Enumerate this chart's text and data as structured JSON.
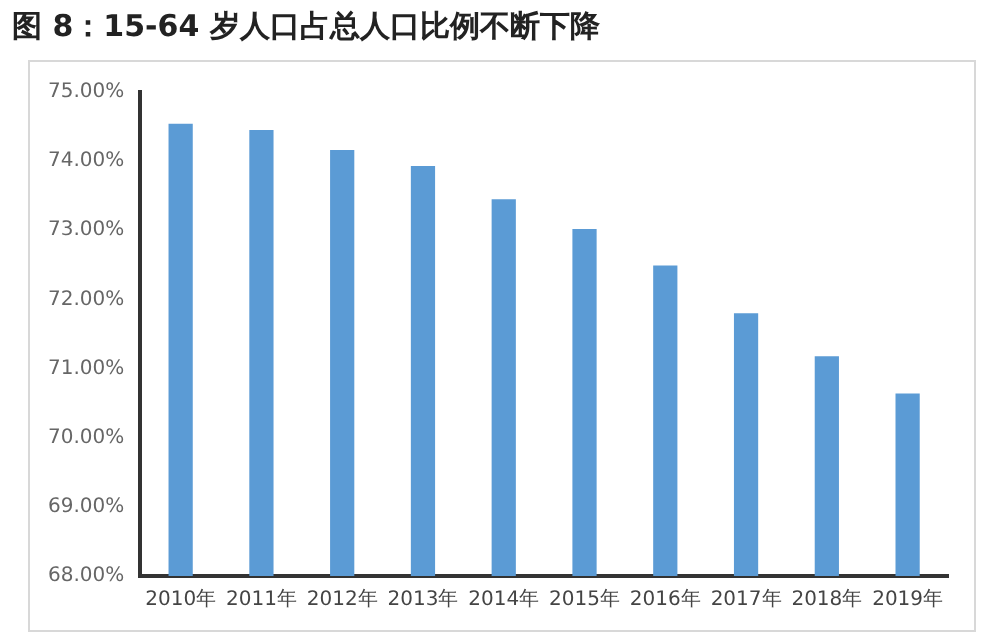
{
  "chart_data": {
    "type": "bar",
    "title": "图 8：15-64 岁人口占总人口比例不断下降",
    "categories": [
      "2010年",
      "2011年",
      "2012年",
      "2013年",
      "2014年",
      "2015年",
      "2016年",
      "2017年",
      "2018年",
      "2019年"
    ],
    "values": [
      74.54,
      74.45,
      74.16,
      73.93,
      73.45,
      73.02,
      72.49,
      71.8,
      71.18,
      70.64
    ],
    "color": "#5b9bd5",
    "ylim": [
      68,
      75
    ],
    "yticks": [
      {
        "value": 68,
        "label": "68.00%"
      },
      {
        "value": 69,
        "label": "69.00%"
      },
      {
        "value": 70,
        "label": "70.00%"
      },
      {
        "value": 71,
        "label": "71.00%"
      },
      {
        "value": 72,
        "label": "72.00%"
      },
      {
        "value": 73,
        "label": "73.00%"
      },
      {
        "value": 74,
        "label": "74.00%"
      },
      {
        "value": 75,
        "label": "75.00%"
      }
    ],
    "grid": false,
    "legend": false
  }
}
